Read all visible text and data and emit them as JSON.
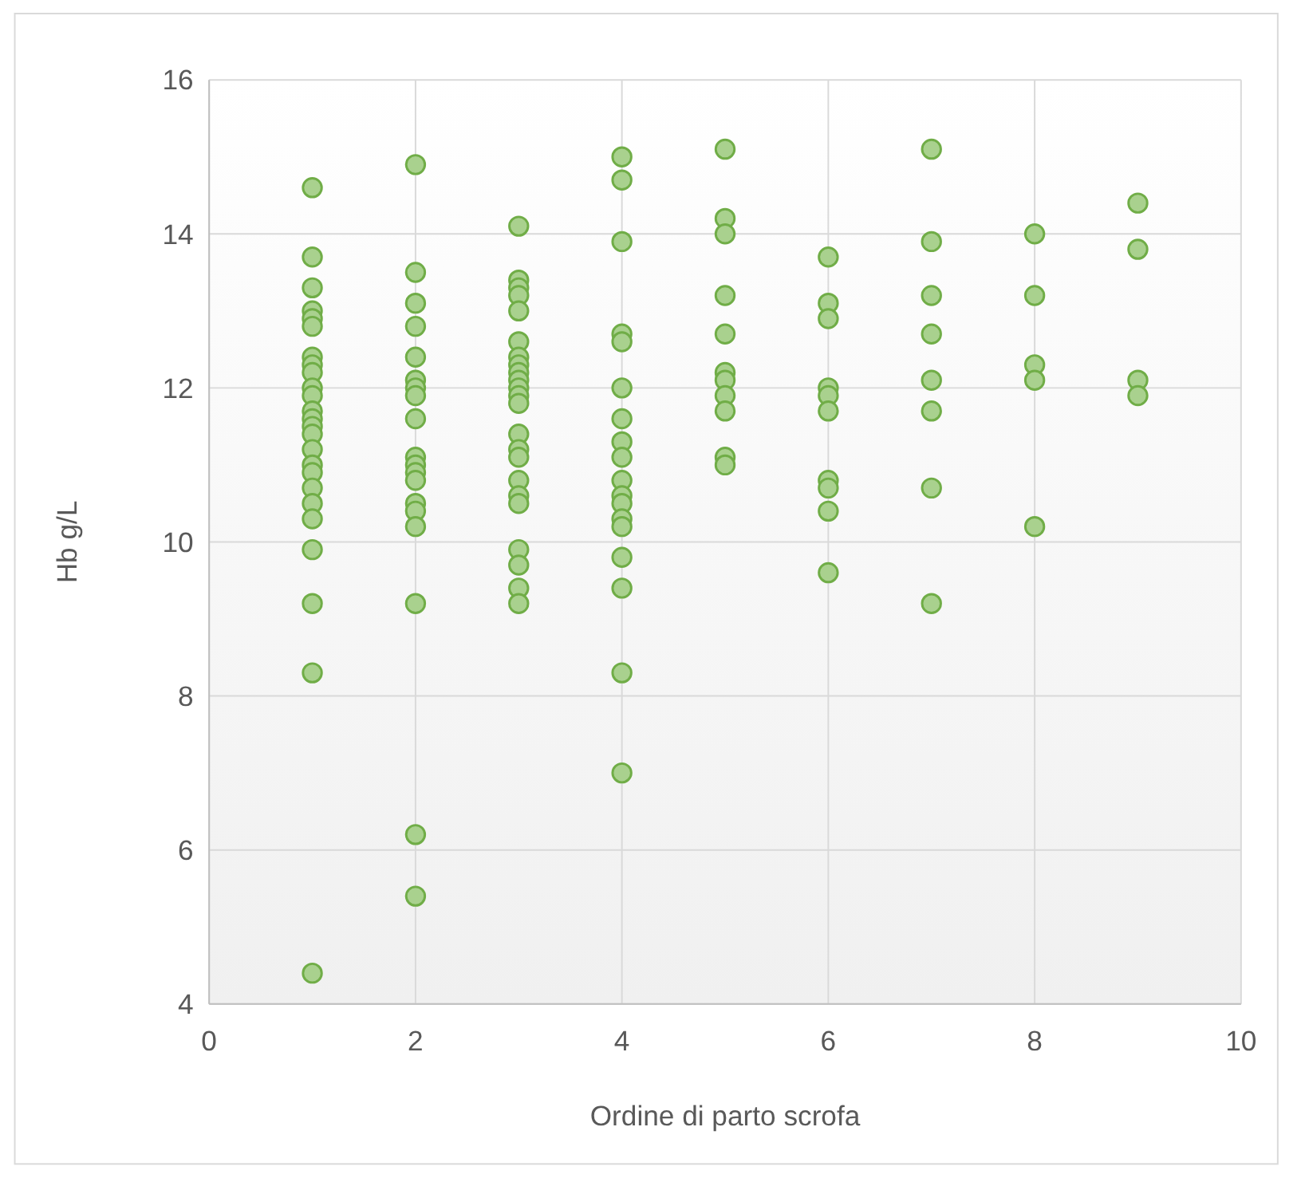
{
  "chart_data": {
    "type": "scatter",
    "xlabel": "Ordine di parto scrofa",
    "ylabel": "Hb g/L",
    "xlim": [
      0,
      10
    ],
    "xticks": [
      0,
      2,
      4,
      6,
      8,
      10
    ],
    "ylim": [
      4,
      16
    ],
    "yticks": [
      4,
      6,
      8,
      10,
      12,
      14,
      16
    ],
    "grid": true,
    "marker": "circle",
    "series": [
      {
        "color": "#a9d18e",
        "x": [
          1,
          1,
          1,
          1,
          1,
          1,
          1,
          1,
          1,
          1,
          1,
          1,
          1,
          1,
          1,
          1,
          1,
          1,
          1,
          1,
          1,
          1,
          1,
          1,
          1,
          2,
          2,
          2,
          2,
          2,
          2,
          2,
          2,
          2,
          2,
          2,
          2,
          2,
          2,
          2,
          2,
          2,
          2,
          2,
          3,
          3,
          3,
          3,
          3,
          3,
          3,
          3,
          3,
          3,
          3,
          3,
          3,
          3,
          3,
          3,
          3,
          3,
          3,
          3,
          3,
          3,
          3,
          4,
          4,
          4,
          4,
          4,
          4,
          4,
          4,
          4,
          4,
          4,
          4,
          4,
          4,
          4,
          4,
          4,
          4,
          5,
          5,
          5,
          5,
          5,
          5,
          5,
          5,
          5,
          5,
          5,
          6,
          6,
          6,
          6,
          6,
          6,
          6,
          6,
          6,
          6,
          7,
          7,
          7,
          7,
          7,
          7,
          7,
          7,
          8,
          8,
          8,
          8,
          8,
          9,
          9,
          9,
          9
        ],
        "values": [
          14.6,
          13.7,
          13.3,
          13.0,
          12.9,
          12.8,
          12.4,
          12.3,
          12.2,
          12.0,
          11.9,
          11.7,
          11.6,
          11.5,
          11.4,
          11.2,
          11.0,
          10.9,
          10.7,
          10.5,
          10.3,
          9.9,
          9.2,
          8.3,
          4.4,
          14.9,
          13.5,
          13.1,
          12.8,
          12.4,
          12.1,
          12.0,
          11.9,
          11.6,
          11.1,
          11.0,
          10.9,
          10.8,
          10.5,
          10.4,
          10.2,
          9.2,
          6.2,
          5.4,
          14.1,
          13.4,
          13.3,
          13.2,
          13.0,
          12.6,
          12.4,
          12.3,
          12.2,
          12.1,
          12.0,
          11.9,
          11.8,
          11.4,
          11.2,
          11.1,
          10.8,
          10.6,
          10.5,
          9.9,
          9.7,
          9.4,
          9.2,
          15.0,
          14.7,
          13.9,
          12.7,
          12.6,
          12.0,
          11.6,
          11.3,
          11.1,
          10.8,
          10.6,
          10.5,
          10.3,
          10.2,
          9.8,
          9.4,
          8.3,
          7.0,
          15.1,
          14.2,
          14.0,
          13.2,
          12.7,
          12.2,
          12.1,
          11.9,
          11.7,
          11.1,
          11.0,
          13.7,
          13.1,
          12.9,
          12.0,
          11.9,
          11.7,
          10.8,
          10.7,
          10.4,
          9.6,
          15.1,
          13.9,
          13.2,
          12.7,
          12.1,
          11.7,
          10.7,
          9.2,
          14.0,
          13.2,
          12.3,
          12.1,
          10.2,
          14.4,
          13.8,
          12.1,
          11.9
        ]
      }
    ]
  }
}
